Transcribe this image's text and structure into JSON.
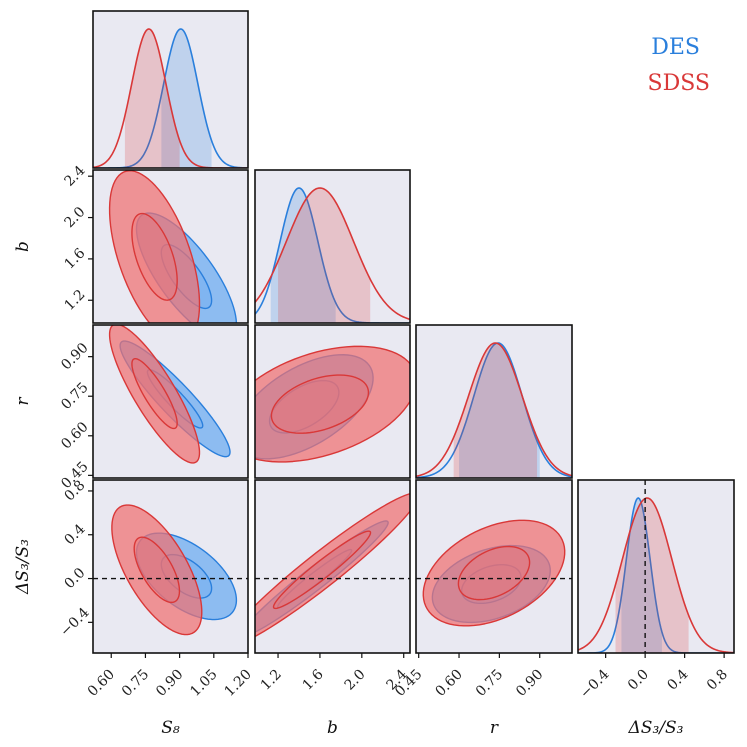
{
  "chart_data": {
    "type": "corner",
    "parameters": [
      {
        "key": "S8",
        "label": "S₈",
        "range": [
          0.52,
          1.2
        ],
        "ticks": [
          "0.60",
          "0.75",
          "0.90",
          "1.05",
          "1.20"
        ],
        "tick_values": [
          0.6,
          0.75,
          0.9,
          1.05,
          1.2
        ]
      },
      {
        "key": "b",
        "label": "b",
        "range": [
          0.98,
          2.46
        ],
        "ticks": [
          "1.2",
          "1.6",
          "2.0",
          "2.4"
        ],
        "tick_values": [
          1.2,
          1.6,
          2.0,
          2.4
        ]
      },
      {
        "key": "r",
        "label": "r",
        "range": [
          0.44,
          1.02
        ],
        "ticks": [
          "0.45",
          "0.60",
          "0.75",
          "0.90"
        ],
        "tick_values": [
          0.45,
          0.6,
          0.75,
          0.9
        ]
      },
      {
        "key": "dS3",
        "label": "ΔS₃/S₃",
        "range": [
          -0.68,
          0.9
        ],
        "ticks": [
          "−0.4",
          "0.0",
          "0.4",
          "0.8"
        ],
        "tick_values": [
          -0.4,
          0.0,
          0.4,
          0.8
        ]
      }
    ],
    "y_ticks": {
      "b": {
        "ticks": [
          "1.2",
          "1.6",
          "2.0",
          "2.4"
        ],
        "values": [
          1.2,
          1.6,
          2.0,
          2.4
        ]
      },
      "r": {
        "ticks": [
          "0.45",
          "0.60",
          "0.75",
          "0.90"
        ],
        "values": [
          0.45,
          0.6,
          0.75,
          0.9
        ]
      },
      "dS3": {
        "ticks": [
          "−0.4",
          "0.0",
          "0.4",
          "0.8"
        ],
        "values": [
          -0.4,
          0.0,
          0.4,
          0.8
        ]
      }
    },
    "y_labels": {
      "b": "b",
      "r": "r",
      "dS3": "ΔS₃/S₃"
    },
    "series": [
      {
        "name": "DES",
        "color": "#2a7fdc",
        "fill": "#6aaaf0",
        "marginals": {
          "S8": {
            "mean": 0.905,
            "sigma": 0.075,
            "band": [
              0.82,
              1.04
            ]
          },
          "b": {
            "mean": 1.4,
            "sigma": 0.18,
            "band": [
              1.13,
              1.75
            ]
          },
          "r": {
            "mean": 0.745,
            "sigma": 0.09,
            "band": [
              0.6,
              0.9
            ]
          },
          "dS3": {
            "mean": -0.07,
            "sigma": 0.12,
            "band": [
              -0.24,
              0.17
            ]
          }
        },
        "contours": {
          "b|S8": {
            "center": [
              0.93,
              1.43
            ],
            "scale": [
              0.1,
              0.28
            ],
            "corr": -0.75
          },
          "r|S8": {
            "center": [
              0.88,
              0.74
            ],
            "scale": [
              0.11,
              0.1
            ],
            "corr": -0.92
          },
          "r|b": {
            "center": [
              1.45,
              0.71
            ],
            "scale": [
              0.3,
              0.09
            ],
            "corr": 0.55
          },
          "dS3|S8": {
            "center": [
              0.93,
              0.02
            ],
            "scale": [
              0.1,
              0.18
            ],
            "corr": -0.55
          },
          "dS3|b": {
            "center": [
              1.55,
              0.0
            ],
            "scale": [
              0.32,
              0.24
            ],
            "corr": 0.97
          },
          "dS3|r": {
            "center": [
              0.72,
              -0.05
            ],
            "scale": [
              0.1,
              0.16
            ],
            "corr": 0.35
          }
        }
      },
      {
        "name": "SDSS",
        "color": "#d93838",
        "fill": "#f07070",
        "marginals": {
          "S8": {
            "mean": 0.765,
            "sigma": 0.075,
            "band": [
              0.66,
              0.9
            ]
          },
          "b": {
            "mean": 1.6,
            "sigma": 0.32,
            "band": [
              1.2,
              2.08
            ]
          },
          "r": {
            "mean": 0.735,
            "sigma": 0.1,
            "band": [
              0.58,
              0.89
            ]
          },
          "dS3": {
            "mean": 0.02,
            "sigma": 0.25,
            "band": [
              -0.3,
              0.44
            ]
          }
        },
        "contours": {
          "b|S8": {
            "center": [
              0.79,
              1.62
            ],
            "scale": [
              0.09,
              0.38
            ],
            "corr": -0.55
          },
          "r|S8": {
            "center": [
              0.79,
              0.76
            ],
            "scale": [
              0.09,
              0.12
            ],
            "corr": -0.85
          },
          "r|b": {
            "center": [
              1.6,
              0.72
            ],
            "scale": [
              0.42,
              0.1
            ],
            "corr": 0.4
          },
          "dS3|S8": {
            "center": [
              0.8,
              0.08
            ],
            "scale": [
              0.09,
              0.27
            ],
            "corr": -0.65
          },
          "dS3|b": {
            "center": [
              1.62,
              0.08
            ],
            "scale": [
              0.42,
              0.32
            ],
            "corr": 0.96
          },
          "dS3|r": {
            "center": [
              0.73,
              0.05
            ],
            "scale": [
              0.12,
              0.22
            ],
            "corr": 0.4
          }
        }
      }
    ],
    "reference_lines": {
      "dS3": 0.0
    },
    "legend": {
      "position": "top-right",
      "entries": [
        "DES",
        "SDSS"
      ]
    }
  },
  "colors": {
    "panel_bg": "#e9e9f2",
    "border": "#111111",
    "dashed": "#111111"
  }
}
